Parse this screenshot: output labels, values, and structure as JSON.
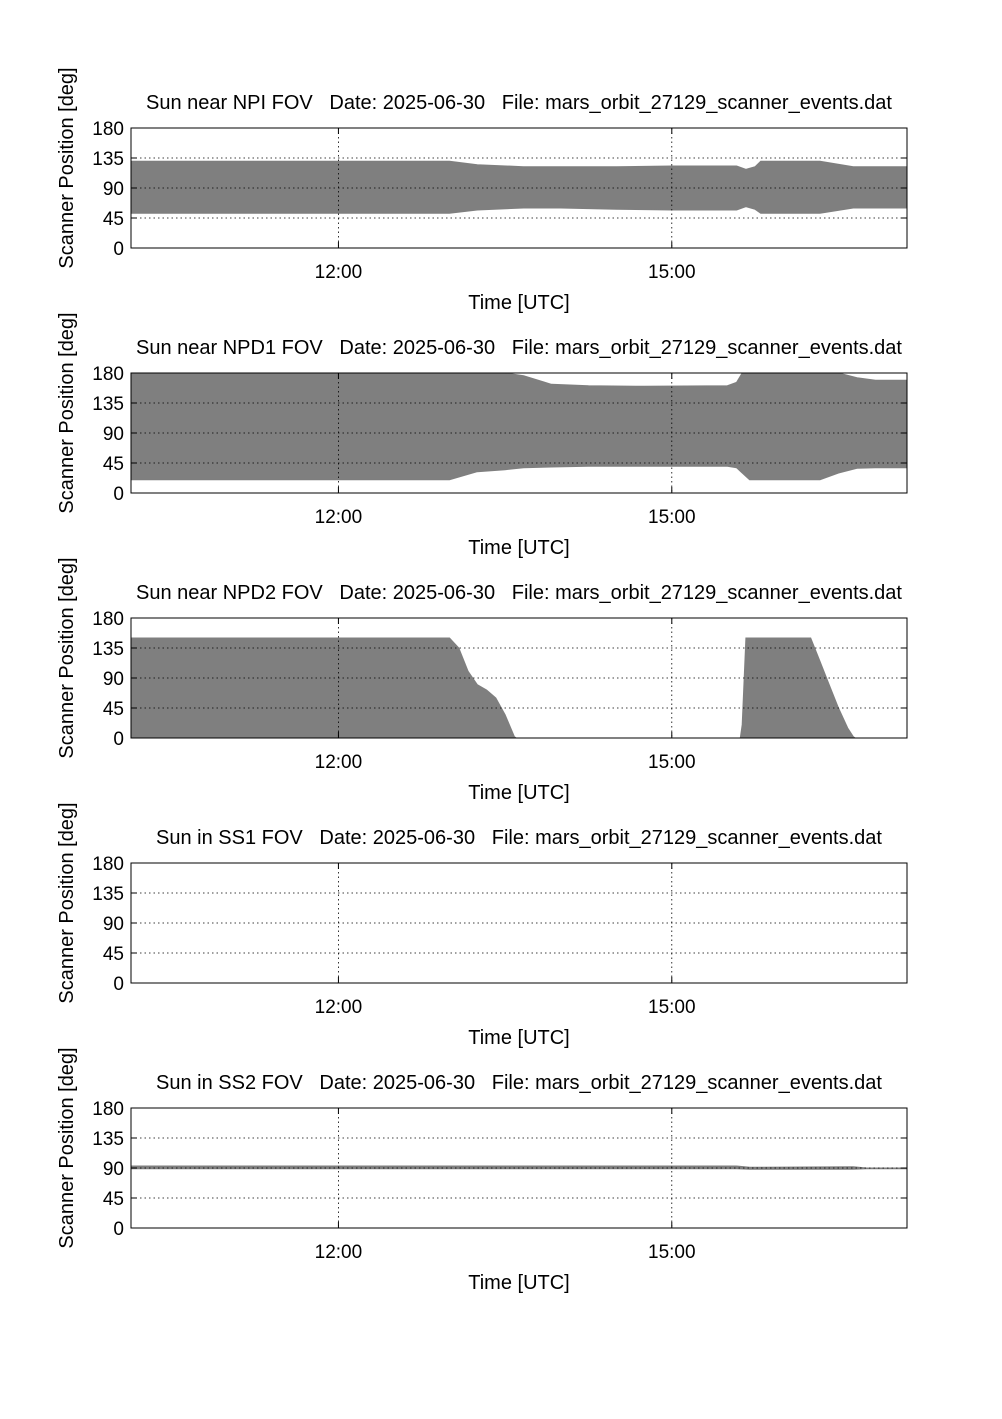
{
  "chart_data": [
    {
      "type": "area",
      "title": "Sun near NPI FOV   Date: 2025-06-30   File: mars_orbit_27129_scanner_events.dat",
      "xlabel": "Time [UTC]",
      "ylabel": "Scanner Position [deg]",
      "xlim": [
        "10:08",
        "17:07"
      ],
      "ylim": [
        0,
        180
      ],
      "yticks": [
        "0",
        "45",
        "90",
        "135",
        "180"
      ],
      "xticks": [
        {
          "t": "12:00",
          "label": "12:00"
        },
        {
          "t": "15:00",
          "label": "15:00"
        }
      ],
      "grid": true,
      "series": [
        {
          "x": [
            "10:08",
            "13:00",
            "13:15",
            "13:40",
            "14:00",
            "14:30",
            "15:00",
            "15:35",
            "15:40",
            "15:45",
            "15:48",
            "16:00",
            "16:20",
            "16:38",
            "17:07"
          ],
          "lower": [
            52,
            52,
            57,
            60,
            60,
            58,
            57,
            57,
            62,
            58,
            52,
            52,
            52,
            60,
            60
          ],
          "upper": [
            130,
            130,
            125,
            122,
            122,
            122,
            123,
            123,
            118,
            122,
            130,
            130,
            130,
            122,
            122
          ]
        }
      ]
    },
    {
      "type": "area",
      "title": "Sun near NPD1 FOV   Date: 2025-06-30   File: mars_orbit_27129_scanner_events.dat",
      "xlabel": "Time [UTC]",
      "ylabel": "Scanner Position [deg]",
      "xlim": [
        "10:08",
        "17:07"
      ],
      "ylim": [
        0,
        180
      ],
      "yticks": [
        "0",
        "45",
        "90",
        "135",
        "180"
      ],
      "xticks": [
        {
          "t": "12:00",
          "label": "12:00"
        },
        {
          "t": "15:00",
          "label": "15:00"
        }
      ],
      "grid": true,
      "series": [
        {
          "x": [
            "10:08",
            "13:00",
            "13:15",
            "13:30",
            "13:40",
            "13:55",
            "14:15",
            "14:45",
            "15:30",
            "15:35",
            "15:38",
            "15:42",
            "16:10",
            "16:20",
            "16:30",
            "16:40",
            "16:50",
            "17:07"
          ],
          "lower": [
            20,
            20,
            32,
            35,
            38,
            39,
            40,
            40,
            40,
            38,
            30,
            20,
            20,
            20,
            30,
            37,
            38,
            38
          ],
          "upper": [
            180,
            180,
            180,
            180,
            176,
            163,
            161,
            160,
            161,
            166,
            180,
            180,
            180,
            180,
            180,
            173,
            169,
            169
          ]
        }
      ]
    },
    {
      "type": "area",
      "title": "Sun near NPD2 FOV   Date: 2025-06-30   File: mars_orbit_27129_scanner_events.dat",
      "xlabel": "Time [UTC]",
      "ylabel": "Scanner Position [deg]",
      "xlim": [
        "10:08",
        "17:07"
      ],
      "ylim": [
        0,
        180
      ],
      "yticks": [
        "0",
        "45",
        "90",
        "135",
        "180"
      ],
      "xticks": [
        {
          "t": "12:00",
          "label": "12:00"
        },
        {
          "t": "15:00",
          "label": "15:00"
        }
      ],
      "grid": true,
      "series": [
        {
          "x": [
            "10:08",
            "13:00",
            "13:05",
            "13:10",
            "13:15",
            "13:20",
            "13:25",
            "13:30",
            "13:33",
            "13:35",
            "13:36",
            "15:37",
            "15:38",
            "15:40",
            "16:15",
            "16:20",
            "16:25",
            "16:30",
            "16:35",
            "16:38",
            "16:39"
          ],
          "lower": [
            0,
            0,
            0,
            0,
            0,
            0,
            0,
            0,
            0,
            0,
            0,
            0,
            0,
            0,
            0,
            0,
            0,
            0,
            0,
            0,
            0
          ],
          "upper": [
            150,
            150,
            135,
            100,
            80,
            72,
            60,
            35,
            15,
            2,
            0,
            0,
            20,
            150,
            150,
            115,
            80,
            45,
            15,
            2,
            0
          ]
        }
      ]
    },
    {
      "type": "area",
      "title": "Sun in SS1 FOV   Date: 2025-06-30   File: mars_orbit_27129_scanner_events.dat",
      "xlabel": "Time [UTC]",
      "ylabel": "Scanner Position [deg]",
      "xlim": [
        "10:08",
        "17:07"
      ],
      "ylim": [
        0,
        180
      ],
      "yticks": [
        "0",
        "45",
        "90",
        "135",
        "180"
      ],
      "xticks": [
        {
          "t": "12:00",
          "label": "12:00"
        },
        {
          "t": "15:00",
          "label": "15:00"
        }
      ],
      "grid": true,
      "series": []
    },
    {
      "type": "area",
      "title": "Sun in SS2 FOV   Date: 2025-06-30   File: mars_orbit_27129_scanner_events.dat",
      "xlabel": "Time [UTC]",
      "ylabel": "Scanner Position [deg]",
      "xlim": [
        "10:08",
        "17:07"
      ],
      "ylim": [
        0,
        180
      ],
      "yticks": [
        "0",
        "45",
        "90",
        "135",
        "180"
      ],
      "xticks": [
        {
          "t": "12:00",
          "label": "12:00"
        },
        {
          "t": "15:00",
          "label": "15:00"
        }
      ],
      "grid": true,
      "series": [
        {
          "x": [
            "10:08",
            "15:35",
            "15:42",
            "16:38",
            "16:45",
            "17:07"
          ],
          "lower": [
            89,
            89,
            88,
            88,
            89,
            89
          ],
          "upper": [
            93,
            93,
            91,
            92,
            90,
            90
          ]
        }
      ]
    }
  ]
}
